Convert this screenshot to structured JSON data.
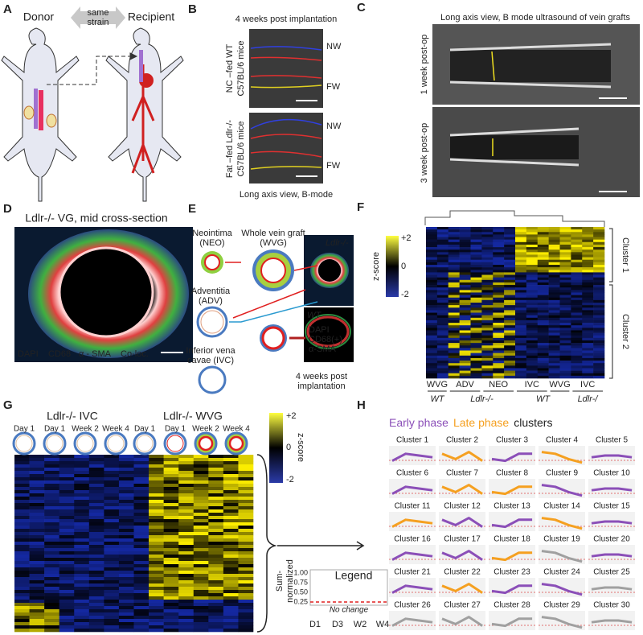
{
  "panel_a": {
    "label": "A",
    "donor": "Donor",
    "arrow": [
      "same",
      "strain"
    ],
    "recipient": "Recipient"
  },
  "panel_b": {
    "label": "B",
    "title": "4 weeks post implantation",
    "rows": [
      {
        "condition": [
          "NC –fed WT",
          "C57BL/6 mice"
        ],
        "near_wall": "NW",
        "far_wall": "FW"
      },
      {
        "condition": [
          "Fat –fed Ldlr-/-",
          "C57BL/6 mice"
        ],
        "near_wall": "NW",
        "far_wall": "FW"
      }
    ],
    "caption": "Long axis view, B-mode"
  },
  "panel_c": {
    "label": "C",
    "title": "Long axis view, B mode ultrasound of vein grafts",
    "rows": [
      "1 week post-op",
      "3 week post-op"
    ]
  },
  "panel_d": {
    "label": "D",
    "title": "Ldlr-/- VG, mid cross-section",
    "stains": [
      {
        "text": "DAPI",
        "color": "#3aa0e0"
      },
      {
        "text": "CD68",
        "color": "#3ec84a"
      },
      {
        "text": "α - SMA",
        "color": "#ff3030"
      },
      {
        "text": "Co-loc.",
        "color": "#f0e040"
      }
    ]
  },
  "panel_e": {
    "label": "E",
    "neointima": [
      "Neointima",
      "(NEO)"
    ],
    "whole": [
      "Whole vein graft",
      "(WVG)"
    ],
    "adventitia": [
      "Adventitia",
      "(ADV)"
    ],
    "ivc": [
      "Inferior vena",
      "cavae (IVC)"
    ],
    "genotypes": [
      "Ldlr-/-",
      "WT"
    ],
    "stains": [
      {
        "text": "DAPI",
        "color": "#2a8ad0"
      },
      {
        "text": "CD68(+)",
        "color": "#22b040"
      },
      {
        "text": "α-SMA",
        "color": "#e02020"
      }
    ],
    "caption": [
      "4 weeks post",
      "implantation"
    ]
  },
  "panel_f": {
    "label": "F",
    "colorbar": {
      "labels": [
        "+2",
        "0",
        "-2"
      ],
      "title": "z-score"
    },
    "clusters": [
      "Cluster 1",
      "Cluster 2"
    ],
    "groups": [
      "WVG",
      "ADV",
      "NEO",
      "IVC",
      "WVG",
      "IVC"
    ],
    "genotypes": [
      "WT",
      "Ldlr-/-",
      "WT",
      "Ldlr-/"
    ]
  },
  "panel_g": {
    "label": "G",
    "groups": [
      {
        "name": "Ldlr-/- IVC",
        "timepoints": [
          "Day 1",
          "Day 1",
          "Week 2",
          "Week 4"
        ]
      },
      {
        "name": "Ldlr-/- WVG",
        "timepoints": [
          "Day 1",
          "Day 1",
          "Week 2",
          "Week 4"
        ]
      }
    ],
    "colorbar": {
      "labels": [
        "+2",
        "0",
        "-2"
      ],
      "title": "z-score"
    },
    "legend": {
      "y_title": [
        "Sum-",
        "normalized"
      ],
      "yticks": [
        "1.00",
        "0.75",
        "0.50",
        "0.25"
      ],
      "title": "Legend",
      "annotation": "No change",
      "xticks": [
        "D1",
        "D3",
        "W2",
        "W4"
      ]
    }
  },
  "panel_h": {
    "label": "H",
    "title": [
      {
        "text": "Early phase",
        "color": "#8b4fb8"
      },
      {
        "text": "Late phase",
        "color": "#f5a020"
      },
      {
        "text": "clusters",
        "color": "#222222"
      }
    ],
    "clusters": [
      {
        "name": "Cluster 1",
        "color": "#8b4fb8"
      },
      {
        "name": "Cluster 2",
        "color": "#f5a020"
      },
      {
        "name": "Cluster 3",
        "color": "#8b4fb8"
      },
      {
        "name": "Cluster 4",
        "color": "#f5a020"
      },
      {
        "name": "Cluster 5",
        "color": "#8b4fb8"
      },
      {
        "name": "Cluster 6",
        "color": "#8b4fb8"
      },
      {
        "name": "Cluster 7",
        "color": "#f5a020"
      },
      {
        "name": "Cluster 8",
        "color": "#f5a020"
      },
      {
        "name": "Cluster 9",
        "color": "#8b4fb8"
      },
      {
        "name": "Cluster 10",
        "color": "#8b4fb8"
      },
      {
        "name": "Cluster 11",
        "color": "#f5a020"
      },
      {
        "name": "Cluster 12",
        "color": "#8b4fb8"
      },
      {
        "name": "Cluster 13",
        "color": "#8b4fb8"
      },
      {
        "name": "Cluster 14",
        "color": "#f5a020"
      },
      {
        "name": "Cluster 15",
        "color": "#8b4fb8"
      },
      {
        "name": "Cluster 16",
        "color": "#8b4fb8"
      },
      {
        "name": "Cluster 17",
        "color": "#8b4fb8"
      },
      {
        "name": "Cluster 18",
        "color": "#f5a020"
      },
      {
        "name": "Cluster 19",
        "color": "#a0a0a0"
      },
      {
        "name": "Cluster 20",
        "color": "#8b4fb8"
      },
      {
        "name": "Cluster 21",
        "color": "#8b4fb8"
      },
      {
        "name": "Cluster 22",
        "color": "#f5a020"
      },
      {
        "name": "Cluster 23",
        "color": "#8b4fb8"
      },
      {
        "name": "Cluster 24",
        "color": "#8b4fb8"
      },
      {
        "name": "Cluster 25",
        "color": "#a0a0a0"
      },
      {
        "name": "Cluster 26",
        "color": "#a0a0a0"
      },
      {
        "name": "Cluster 27",
        "color": "#a0a0a0"
      },
      {
        "name": "Cluster 28",
        "color": "#a0a0a0"
      },
      {
        "name": "Cluster 29",
        "color": "#a0a0a0"
      },
      {
        "name": "Cluster 30",
        "color": "#a0a0a0"
      }
    ]
  }
}
